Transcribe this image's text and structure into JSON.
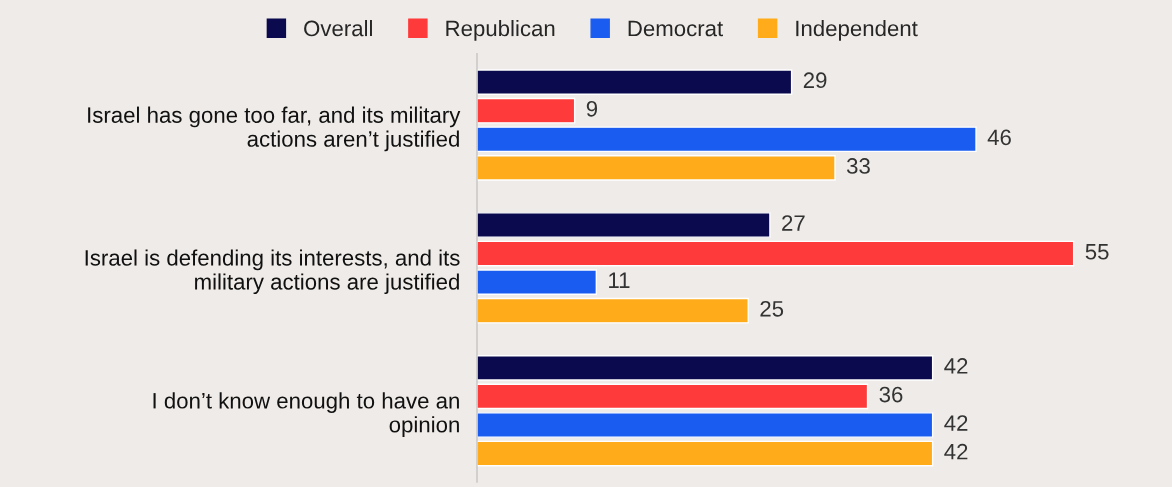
{
  "chart_data": {
    "type": "bar",
    "orientation": "horizontal",
    "data_labels": true,
    "legend": "top",
    "grid": false,
    "categories": [
      "Israel has gone too far, and its military\nactions aren’t justified",
      "Israel is defending its interests, and its\nmilitary actions are justified",
      "I don’t know enough to have an\nopinion"
    ],
    "series": [
      {
        "name": "Overall",
        "color": "#0b0a4f",
        "values": [
          29,
          27,
          42
        ]
      },
      {
        "name": "Republican",
        "color": "#ff3a3a",
        "values": [
          9,
          55,
          36
        ]
      },
      {
        "name": "Democrat",
        "color": "#1b5cf0",
        "values": [
          46,
          11,
          42
        ]
      },
      {
        "name": "Independent",
        "color": "#ffab1a",
        "values": [
          33,
          25,
          42
        ]
      }
    ]
  }
}
